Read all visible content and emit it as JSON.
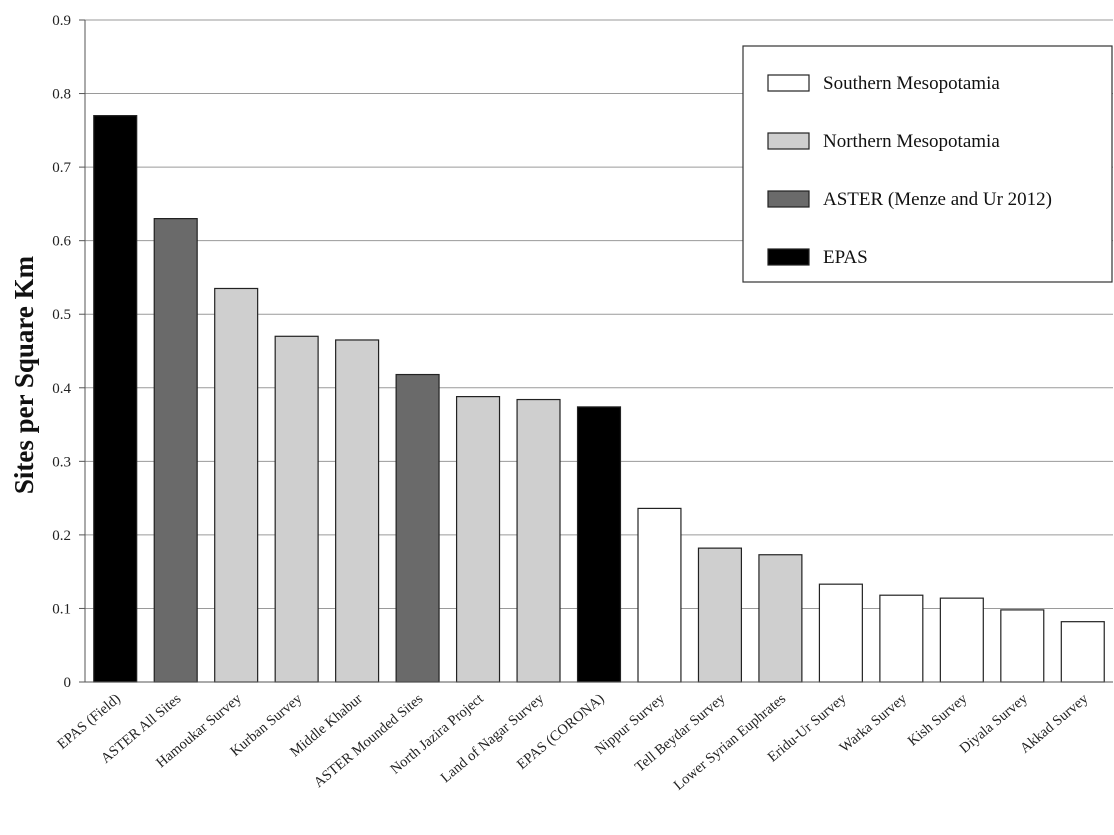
{
  "chart_data": {
    "type": "bar",
    "title": "",
    "xlabel": "",
    "ylabel": "Sites per Square Km",
    "ylim": [
      0,
      0.9
    ],
    "yticks": [
      "0",
      "0.1",
      "0.2",
      "0.3",
      "0.4",
      "0.5",
      "0.6",
      "0.7",
      "0.8",
      "0.9"
    ],
    "grid": true,
    "legend_position": "top-right",
    "groups": [
      {
        "name": "Southern Mesopotamia",
        "color": "#ffffff"
      },
      {
        "name": "Northern Mesopotamia",
        "color": "#cfcfcf"
      },
      {
        "name": "ASTER (Menze and Ur 2012)",
        "color": "#6a6a6a"
      },
      {
        "name": "EPAS",
        "color": "#000000"
      }
    ],
    "categories": [
      "EPAS (Field)",
      "ASTER All Sites",
      "Hamoukar Survey",
      "Kurban Survey",
      "Middle Khabur",
      "ASTER Mounded Sites",
      "North Jazira Project",
      "Land of Nagar Survey",
      "EPAS (CORONA)",
      "Nippur Survey",
      "Tell Beydar Survey",
      "Lower Syrian Euphrates",
      "Eridu-Ur Survey",
      "Warka Survey",
      "Kish Survey",
      "Diyala Survey",
      "Akkad Survey"
    ],
    "values": [
      0.77,
      0.63,
      0.535,
      0.47,
      0.465,
      0.418,
      0.388,
      0.384,
      0.374,
      0.236,
      0.182,
      0.173,
      0.133,
      0.118,
      0.114,
      0.098,
      0.082
    ],
    "value_groups": [
      "EPAS",
      "ASTER (Menze and Ur 2012)",
      "Northern Mesopotamia",
      "Northern Mesopotamia",
      "Northern Mesopotamia",
      "ASTER (Menze and Ur 2012)",
      "Northern Mesopotamia",
      "Northern Mesopotamia",
      "EPAS",
      "Southern Mesopotamia",
      "Northern Mesopotamia",
      "Northern Mesopotamia",
      "Southern Mesopotamia",
      "Southern Mesopotamia",
      "Southern Mesopotamia",
      "Southern Mesopotamia",
      "Southern Mesopotamia"
    ]
  }
}
